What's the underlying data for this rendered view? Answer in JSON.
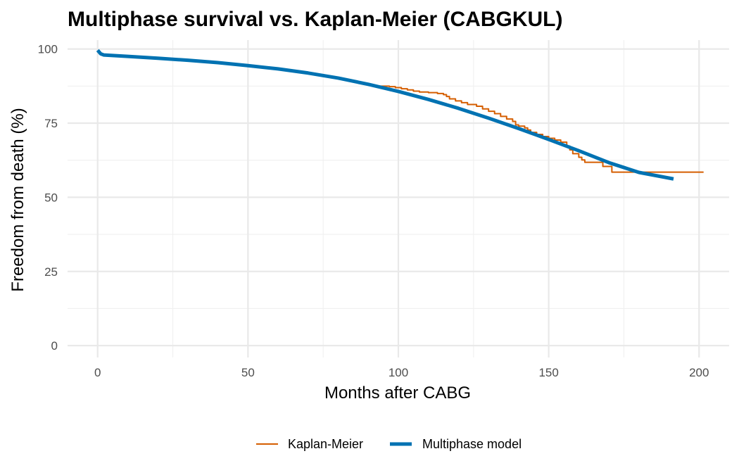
{
  "chart_data": {
    "type": "line",
    "title": "Multiphase survival vs. Kaplan-Meier (CABGKUL)",
    "xlabel": "Months after CABG",
    "ylabel": "Freedom from death (%)",
    "xlim": [
      -10,
      210
    ],
    "ylim": [
      -4,
      103
    ],
    "x_ticks": [
      0,
      50,
      100,
      150,
      200
    ],
    "x_tick_labels": [
      "0",
      "50",
      "100",
      "150",
      "200"
    ],
    "y_ticks": [
      0,
      25,
      50,
      75,
      100
    ],
    "y_tick_labels": [
      "0",
      "25",
      "50",
      "75",
      "100"
    ],
    "grid": true,
    "legend_position": "bottom",
    "series": [
      {
        "name": "Kaplan-Meier",
        "style": "step",
        "color": "#D55E00",
        "points": [
          [
            93,
            87.5
          ],
          [
            97,
            87.3
          ],
          [
            99,
            87.0
          ],
          [
            101,
            86.6
          ],
          [
            103,
            86.2
          ],
          [
            105,
            85.8
          ],
          [
            107,
            85.5
          ],
          [
            110,
            85.3
          ],
          [
            113,
            85.0
          ],
          [
            115,
            84.6
          ],
          [
            116,
            84.0
          ],
          [
            117,
            83.2
          ],
          [
            119,
            82.5
          ],
          [
            121,
            81.9
          ],
          [
            123,
            81.3
          ],
          [
            126,
            80.7
          ],
          [
            128,
            79.8
          ],
          [
            130,
            79.0
          ],
          [
            132,
            78.2
          ],
          [
            134,
            77.3
          ],
          [
            136,
            76.4
          ],
          [
            138,
            75.6
          ],
          [
            139,
            74.4
          ],
          [
            140,
            74.0
          ],
          [
            142,
            73.4
          ],
          [
            143,
            72.7
          ],
          [
            144,
            71.9
          ],
          [
            146,
            71.2
          ],
          [
            148,
            70.5
          ],
          [
            150,
            69.9
          ],
          [
            152,
            69.3
          ],
          [
            154,
            68.6
          ],
          [
            156,
            67.3
          ],
          [
            157,
            66.0
          ],
          [
            158,
            64.7
          ],
          [
            160,
            63.5
          ],
          [
            161,
            62.6
          ],
          [
            162,
            61.8
          ],
          [
            168,
            60.4
          ],
          [
            171,
            58.5
          ],
          [
            201.5,
            58.5
          ]
        ]
      },
      {
        "name": "Multiphase model",
        "style": "smooth",
        "color": "#0072B2",
        "points": [
          [
            0,
            99.6
          ],
          [
            0.5,
            99.0
          ],
          [
            1,
            98.4
          ],
          [
            2,
            98.0
          ],
          [
            5,
            97.8
          ],
          [
            10,
            97.5
          ],
          [
            20,
            96.9
          ],
          [
            30,
            96.2
          ],
          [
            40,
            95.4
          ],
          [
            50,
            94.4
          ],
          [
            60,
            93.3
          ],
          [
            70,
            91.9
          ],
          [
            80,
            90.2
          ],
          [
            90,
            88.1
          ],
          [
            100,
            85.7
          ],
          [
            110,
            83.0
          ],
          [
            120,
            80.0
          ],
          [
            130,
            76.7
          ],
          [
            140,
            73.2
          ],
          [
            150,
            69.5
          ],
          [
            160,
            65.7
          ],
          [
            170,
            61.7
          ],
          [
            180,
            58.4
          ],
          [
            191.5,
            56.2
          ]
        ]
      }
    ]
  }
}
